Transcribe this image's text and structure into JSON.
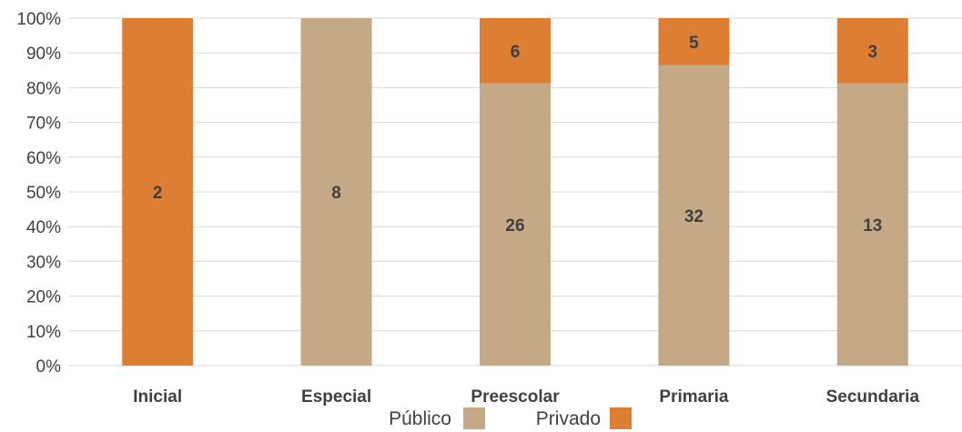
{
  "chart_data": {
    "type": "bar",
    "stacked": true,
    "percent": true,
    "categories": [
      "Inicial",
      "Especial",
      "Preescolar",
      "Primaria",
      "Secundaria"
    ],
    "series": [
      {
        "name": "Público",
        "color": "#C4A986",
        "values": [
          0,
          8,
          26,
          32,
          13
        ],
        "labels": [
          "",
          "8",
          "26",
          "32",
          "13"
        ]
      },
      {
        "name": "Privado",
        "color": "#DC7E33",
        "values": [
          2,
          0,
          6,
          5,
          3
        ],
        "labels": [
          "2",
          "",
          "6",
          "5",
          "3"
        ]
      }
    ],
    "yticks": [
      "0%",
      "10%",
      "20%",
      "30%",
      "40%",
      "50%",
      "60%",
      "70%",
      "80%",
      "90%",
      "100%"
    ],
    "ylim": [
      0,
      100
    ],
    "grid": true,
    "legend_position": "bottom"
  }
}
